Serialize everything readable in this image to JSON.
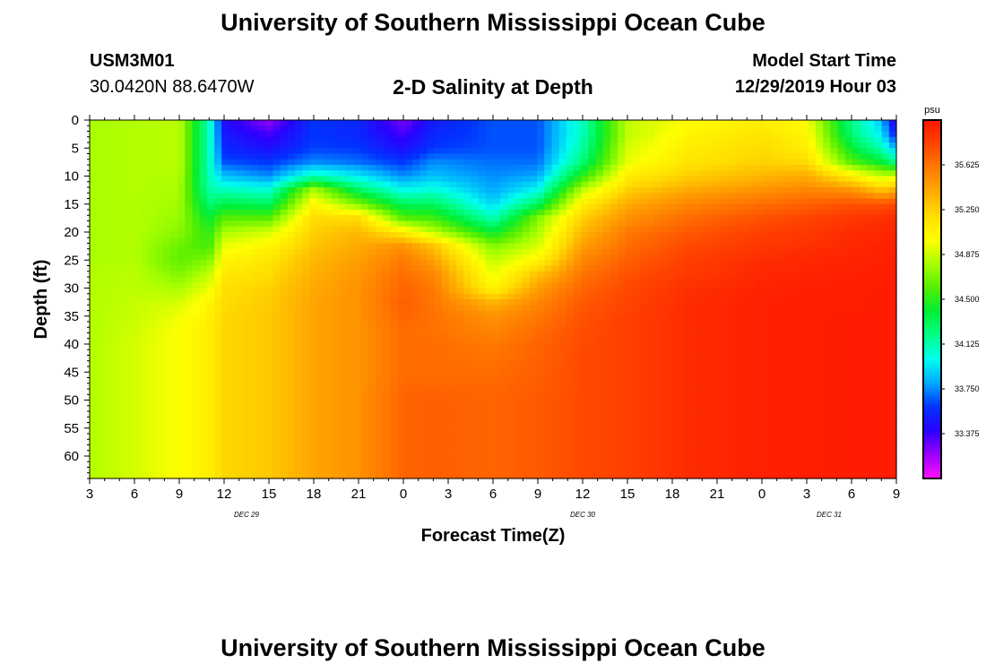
{
  "header": {
    "title": "University of Southern Mississippi Ocean Cube",
    "station_id": "USM3M01",
    "coordinates": "30.0420N 88.6470W",
    "plot_title": "2-D Salinity at Depth",
    "model_start_label": "Model Start Time",
    "model_start_value": "12/29/2019 Hour 03"
  },
  "footer": {
    "title": "University of Southern Mississippi Ocean Cube"
  },
  "chart_data": {
    "type": "heatmap",
    "title": "2-D Salinity at Depth",
    "xlabel": "Forecast Time(Z)",
    "ylabel": "Depth (ft)",
    "x_tick_labels": [
      "3",
      "6",
      "9",
      "12",
      "15",
      "18",
      "21",
      "0",
      "3",
      "6",
      "9",
      "12",
      "15",
      "18",
      "21",
      "0",
      "3",
      "6",
      "9"
    ],
    "x_range_hours": [
      0,
      54
    ],
    "date_labels": [
      {
        "label": "DEC 29",
        "hour": 10.5
      },
      {
        "label": "DEC 30",
        "hour": 33
      },
      {
        "label": "DEC 31",
        "hour": 49.5
      }
    ],
    "y_tick_labels": [
      "0",
      "5",
      "10",
      "15",
      "20",
      "25",
      "30",
      "35",
      "40",
      "45",
      "50",
      "55",
      "60"
    ],
    "ylim": [
      0,
      64
    ],
    "colorbar": {
      "unit": "psu",
      "min": 33.0,
      "max": 36.0,
      "tick_labels": [
        "35.625",
        "35.250",
        "34.875",
        "34.500",
        "34.125",
        "33.750",
        "33.375"
      ],
      "tick_values": [
        35.625,
        35.25,
        34.875,
        34.5,
        34.125,
        33.75,
        33.375
      ],
      "colors": [
        "#ff10ff",
        "#9a00ff",
        "#2a00ff",
        "#0033ff",
        "#00aaff",
        "#00ffee",
        "#00ff88",
        "#00ee33",
        "#55ee00",
        "#aaff00",
        "#ffff00",
        "#ffdd00",
        "#ffaa00",
        "#ff7a00",
        "#ff4400",
        "#ff1500"
      ]
    },
    "depth_levels_ft": [
      0,
      2.5,
      5,
      7.5,
      10,
      12.5,
      15,
      17.5,
      20,
      22.5,
      25,
      27.5,
      30,
      32.5,
      35,
      37.5,
      40,
      45,
      50,
      55,
      60,
      64
    ],
    "profiles": [
      {
        "hour": 0,
        "values": [
          34.8,
          34.8,
          34.8,
          34.8,
          34.8,
          34.8,
          34.8,
          34.8,
          34.8,
          34.8,
          34.8,
          34.82,
          34.82,
          34.82,
          34.82,
          34.82,
          34.82,
          34.82,
          34.82,
          34.82,
          34.82,
          34.82
        ]
      },
      {
        "hour": 3,
        "values": [
          34.82,
          34.82,
          34.82,
          34.82,
          34.82,
          34.82,
          34.82,
          34.82,
          34.82,
          34.82,
          34.82,
          34.84,
          34.84,
          34.86,
          34.87,
          34.88,
          34.9,
          34.9,
          34.9,
          34.9,
          34.9,
          34.9
        ]
      },
      {
        "hour": 6,
        "values": [
          34.84,
          34.84,
          34.84,
          34.84,
          34.82,
          34.8,
          34.78,
          34.76,
          34.72,
          34.65,
          34.62,
          34.7,
          34.8,
          34.9,
          34.96,
          35.0,
          35.0,
          35.0,
          35.0,
          35.0,
          35.0,
          35.0
        ]
      },
      {
        "hour": 8,
        "values": [
          34.1,
          34.1,
          34.1,
          34.1,
          34.1,
          34.15,
          34.25,
          34.4,
          34.5,
          34.55,
          34.7,
          34.85,
          34.95,
          35.05,
          35.08,
          35.1,
          35.1,
          35.1,
          35.1,
          35.1,
          35.1,
          35.1
        ]
      },
      {
        "hour": 9,
        "values": [
          33.45,
          33.5,
          33.55,
          33.65,
          33.85,
          34.1,
          34.35,
          34.6,
          34.8,
          34.95,
          35.05,
          35.12,
          35.18,
          35.2,
          35.22,
          35.22,
          35.22,
          35.22,
          35.22,
          35.22,
          35.22,
          35.22
        ]
      },
      {
        "hour": 12,
        "values": [
          33.2,
          33.35,
          33.45,
          33.6,
          33.75,
          34.05,
          34.3,
          34.6,
          34.9,
          35.05,
          35.15,
          35.2,
          35.25,
          35.27,
          35.28,
          35.28,
          35.28,
          35.28,
          35.28,
          35.28,
          35.28,
          35.28
        ]
      },
      {
        "hour": 15,
        "values": [
          33.6,
          33.6,
          33.62,
          33.75,
          34.1,
          34.8,
          35.05,
          35.2,
          35.25,
          35.3,
          35.35,
          35.38,
          35.4,
          35.42,
          35.42,
          35.42,
          35.42,
          35.42,
          35.42,
          35.42,
          35.42,
          35.42
        ]
      },
      {
        "hour": 18,
        "values": [
          33.55,
          33.55,
          33.6,
          33.7,
          33.95,
          34.3,
          34.7,
          35.2,
          35.35,
          35.4,
          35.45,
          35.48,
          35.5,
          35.5,
          35.5,
          35.5,
          35.5,
          35.5,
          35.5,
          35.5,
          35.5,
          35.5
        ]
      },
      {
        "hour": 21,
        "values": [
          33.25,
          33.35,
          33.45,
          33.6,
          33.75,
          34.0,
          34.3,
          34.6,
          35.1,
          35.5,
          35.6,
          35.65,
          35.68,
          35.7,
          35.68,
          35.65,
          35.65,
          35.65,
          35.68,
          35.68,
          35.68,
          35.68
        ]
      },
      {
        "hour": 23,
        "values": [
          33.5,
          33.55,
          33.6,
          33.75,
          33.85,
          34.05,
          34.3,
          34.55,
          34.85,
          35.3,
          35.45,
          35.55,
          35.6,
          35.62,
          35.63,
          35.63,
          35.65,
          35.65,
          35.7,
          35.7,
          35.7,
          35.7
        ]
      },
      {
        "hour": 27,
        "values": [
          33.65,
          33.65,
          33.65,
          33.7,
          33.75,
          33.8,
          33.9,
          34.1,
          34.4,
          34.7,
          34.85,
          34.95,
          35.05,
          35.35,
          35.5,
          35.55,
          35.6,
          35.65,
          35.68,
          35.68,
          35.68,
          35.68
        ]
      },
      {
        "hour": 30,
        "values": [
          33.65,
          33.65,
          33.65,
          33.7,
          33.8,
          34.0,
          34.3,
          34.7,
          34.8,
          34.9,
          35.05,
          35.3,
          35.45,
          35.55,
          35.6,
          35.65,
          35.68,
          35.7,
          35.72,
          35.72,
          35.72,
          35.72
        ]
      },
      {
        "hour": 33,
        "values": [
          34.1,
          34.1,
          34.15,
          34.25,
          34.5,
          34.85,
          35.1,
          35.25,
          35.35,
          35.45,
          35.55,
          35.62,
          35.68,
          35.72,
          35.75,
          35.76,
          35.78,
          35.78,
          35.78,
          35.78,
          35.78,
          35.78
        ]
      },
      {
        "hour": 36,
        "values": [
          34.85,
          34.85,
          34.9,
          34.95,
          35.1,
          35.25,
          35.4,
          35.5,
          35.6,
          35.65,
          35.7,
          35.75,
          35.78,
          35.8,
          35.82,
          35.82,
          35.82,
          35.82,
          35.82,
          35.82,
          35.82,
          35.82
        ]
      },
      {
        "hour": 40,
        "values": [
          35.0,
          35.05,
          35.1,
          35.15,
          35.25,
          35.4,
          35.55,
          35.65,
          35.72,
          35.78,
          35.82,
          35.85,
          35.88,
          35.9,
          35.9,
          35.9,
          35.9,
          35.9,
          35.9,
          35.9,
          35.9,
          35.9
        ]
      },
      {
        "hour": 45,
        "values": [
          35.1,
          35.15,
          35.2,
          35.25,
          35.35,
          35.5,
          35.65,
          35.75,
          35.82,
          35.86,
          35.9,
          35.92,
          35.94,
          35.95,
          35.95,
          35.95,
          35.95,
          35.95,
          35.95,
          35.95,
          35.95,
          35.95
        ]
      },
      {
        "hour": 48,
        "values": [
          35.0,
          35.05,
          35.1,
          35.2,
          35.4,
          35.55,
          35.7,
          35.8,
          35.85,
          35.88,
          35.92,
          35.94,
          35.95,
          35.96,
          35.96,
          35.96,
          35.96,
          35.96,
          35.96,
          35.96,
          35.96,
          35.96
        ]
      },
      {
        "hour": 51,
        "values": [
          34.2,
          34.25,
          34.4,
          34.6,
          35.1,
          35.5,
          35.75,
          35.85,
          35.9,
          35.92,
          35.94,
          35.95,
          35.96,
          35.96,
          35.97,
          35.97,
          35.97,
          35.97,
          35.97,
          35.97,
          35.97,
          35.97
        ]
      },
      {
        "hour": 53,
        "values": [
          33.85,
          33.95,
          34.1,
          34.4,
          34.85,
          35.3,
          35.75,
          35.88,
          35.92,
          35.94,
          35.95,
          35.96,
          35.97,
          35.97,
          35.97,
          35.97,
          35.97,
          35.97,
          35.97,
          35.97,
          35.97,
          35.97
        ]
      },
      {
        "hour": 54,
        "values": [
          33.3,
          33.5,
          33.8,
          34.2,
          34.9,
          35.4,
          35.8,
          35.9,
          35.93,
          35.95,
          35.96,
          35.97,
          35.97,
          35.97,
          35.97,
          35.97,
          35.97,
          35.97,
          35.97,
          35.97,
          35.97,
          35.97
        ]
      }
    ]
  }
}
